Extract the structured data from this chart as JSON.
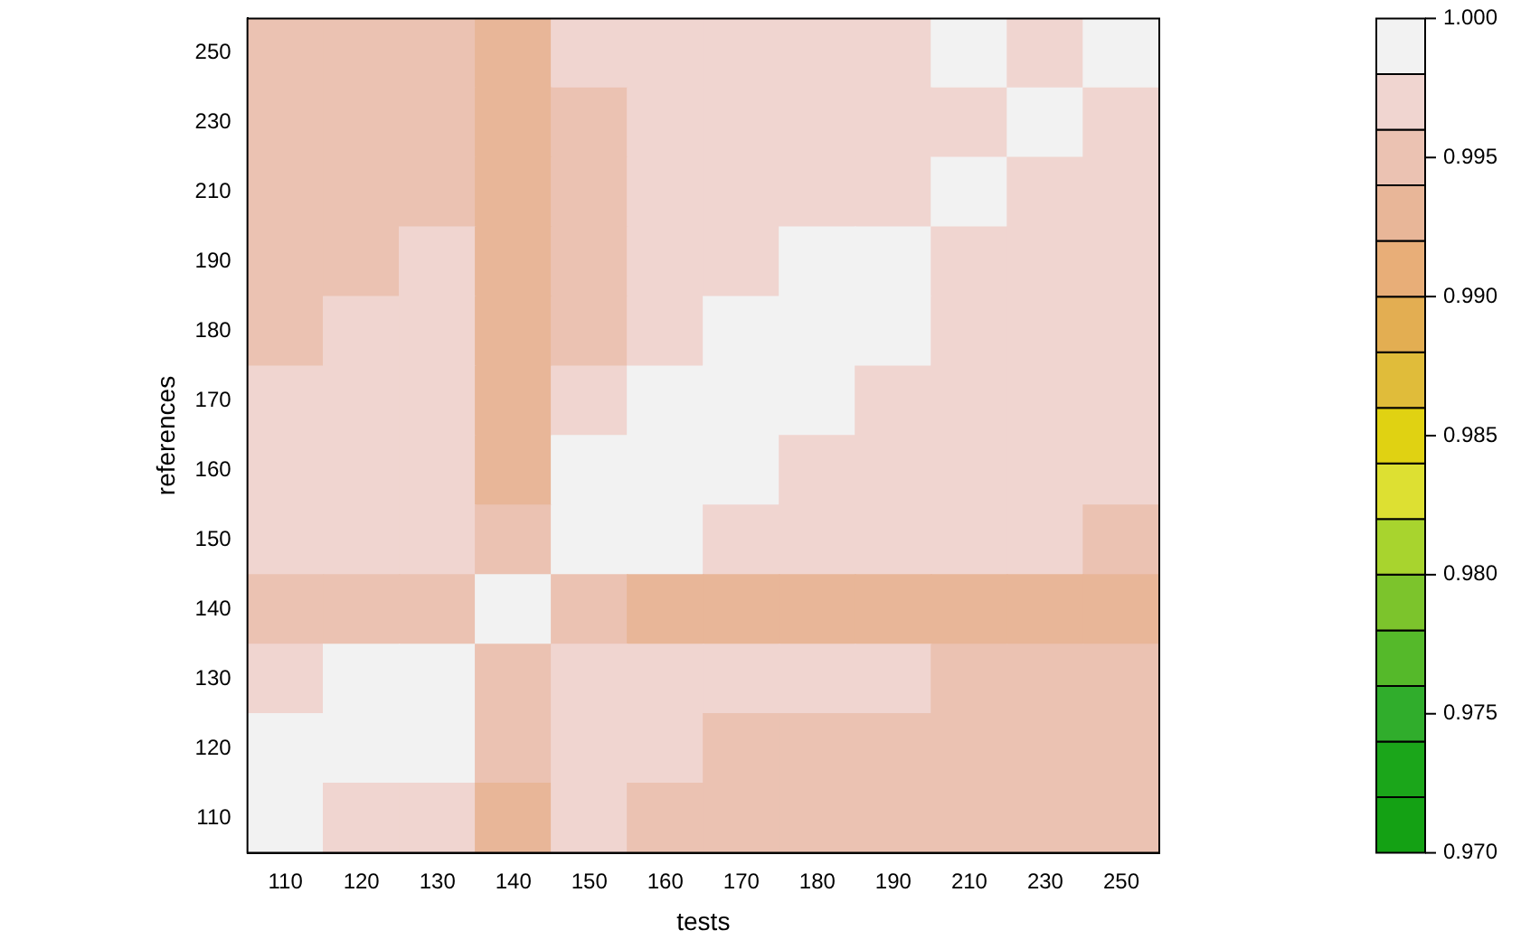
{
  "chart_data": {
    "type": "heatmap",
    "xlabel": "tests",
    "ylabel": "references",
    "categories": [
      "110",
      "120",
      "130",
      "140",
      "150",
      "160",
      "170",
      "180",
      "190",
      "210",
      "230",
      "250"
    ],
    "y_categories": [
      "250",
      "230",
      "210",
      "190",
      "180",
      "170",
      "160",
      "150",
      "140",
      "130",
      "120",
      "110"
    ],
    "cells": [
      [
        0.995,
        0.995,
        0.995,
        0.993,
        0.997,
        0.997,
        0.997,
        0.997,
        0.997,
        0.999,
        0.997,
        0.999
      ],
      [
        0.995,
        0.995,
        0.995,
        0.993,
        0.995,
        0.997,
        0.997,
        0.997,
        0.997,
        0.997,
        0.999,
        0.997
      ],
      [
        0.995,
        0.995,
        0.995,
        0.993,
        0.995,
        0.997,
        0.997,
        0.997,
        0.997,
        0.999,
        0.997,
        0.997
      ],
      [
        0.995,
        0.995,
        0.997,
        0.993,
        0.995,
        0.997,
        0.997,
        0.999,
        0.999,
        0.997,
        0.997,
        0.997
      ],
      [
        0.995,
        0.997,
        0.997,
        0.993,
        0.995,
        0.997,
        0.999,
        0.999,
        0.999,
        0.997,
        0.997,
        0.997
      ],
      [
        0.997,
        0.997,
        0.997,
        0.993,
        0.997,
        0.999,
        0.999,
        0.999,
        0.997,
        0.997,
        0.997,
        0.997
      ],
      [
        0.997,
        0.997,
        0.997,
        0.993,
        0.999,
        0.999,
        0.999,
        0.997,
        0.997,
        0.997,
        0.997,
        0.997
      ],
      [
        0.997,
        0.997,
        0.997,
        0.995,
        0.999,
        0.999,
        0.997,
        0.997,
        0.997,
        0.997,
        0.997,
        0.995
      ],
      [
        0.995,
        0.995,
        0.995,
        0.999,
        0.995,
        0.993,
        0.993,
        0.993,
        0.993,
        0.993,
        0.993,
        0.993
      ],
      [
        0.997,
        0.999,
        0.999,
        0.995,
        0.997,
        0.997,
        0.997,
        0.997,
        0.997,
        0.995,
        0.995,
        0.995
      ],
      [
        0.999,
        0.999,
        0.999,
        0.995,
        0.997,
        0.997,
        0.995,
        0.995,
        0.995,
        0.995,
        0.995,
        0.995
      ],
      [
        0.999,
        0.997,
        0.997,
        0.993,
        0.997,
        0.995,
        0.995,
        0.995,
        0.995,
        0.995,
        0.995,
        0.995
      ]
    ],
    "clim": [
      0.97,
      1.0
    ],
    "cticks": [
      {
        "value": 0.97,
        "label": "0.970"
      },
      {
        "value": 0.975,
        "label": "0.975"
      },
      {
        "value": 0.98,
        "label": "0.980"
      },
      {
        "value": 0.985,
        "label": "0.985"
      },
      {
        "value": 0.99,
        "label": "0.990"
      },
      {
        "value": 0.995,
        "label": "0.995"
      },
      {
        "value": 1.0,
        "label": "1.000"
      }
    ],
    "colors": [
      "#14a114",
      "#1ba61a",
      "#30ad2c",
      "#55b92a",
      "#7cc42c",
      "#a8d42e",
      "#dde032",
      "#e0d212",
      "#e0bc3a",
      "#e3ae52",
      "#e8ae78",
      "#e8b698",
      "#ebc2b2",
      "#f0d5d0",
      "#f2f2f2"
    ]
  }
}
